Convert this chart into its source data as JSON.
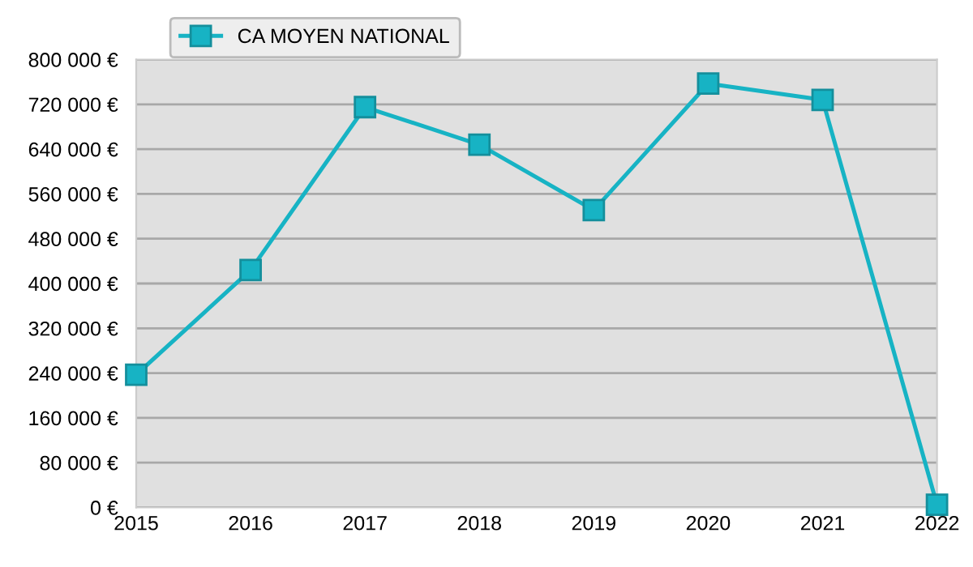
{
  "chart_data": {
    "type": "line",
    "x": [
      2015,
      2016,
      2017,
      2018,
      2019,
      2020,
      2021,
      2022
    ],
    "series": [
      {
        "name": "CA MOYEN NATIONAL",
        "color": "#17b3c4",
        "values": [
          237000,
          424000,
          715000,
          648000,
          531000,
          757000,
          728000,
          5000
        ]
      }
    ],
    "xlim": [
      2015,
      2022
    ],
    "xticks": [
      2015,
      2016,
      2017,
      2018,
      2019,
      2020,
      2021,
      2022
    ],
    "ylim": [
      0,
      800000
    ],
    "yticks": [
      {
        "value": 0,
        "label": "0 €"
      },
      {
        "value": 80000,
        "label": "80 000 €"
      },
      {
        "value": 160000,
        "label": "160 000 €"
      },
      {
        "value": 240000,
        "label": "240 000 €"
      },
      {
        "value": 320000,
        "label": "320 000 €"
      },
      {
        "value": 400000,
        "label": "400 000 €"
      },
      {
        "value": 480000,
        "label": "480 000 €"
      },
      {
        "value": 560000,
        "label": "560 000 €"
      },
      {
        "value": 640000,
        "label": "640 000 €"
      },
      {
        "value": 720000,
        "label": "720 000 €"
      },
      {
        "value": 800000,
        "label": "800 000 €"
      }
    ],
    "grid": "y",
    "legend": "top left",
    "marker": "square",
    "line_style": "solid"
  }
}
